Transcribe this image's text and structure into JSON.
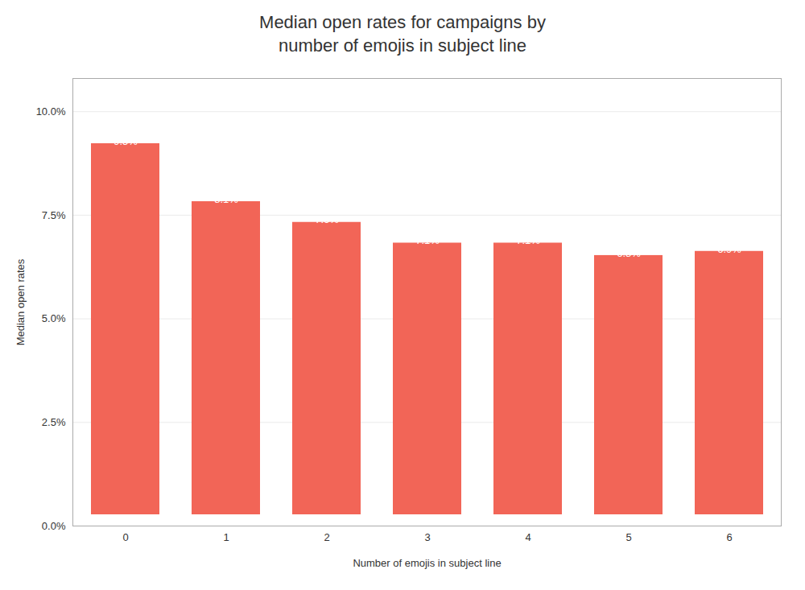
{
  "chart_data": {
    "type": "bar",
    "title": "Median open rates for campaigns by\nnumber of emojis in subject line",
    "xlabel": "Number of emojis in subject line",
    "ylabel": "Median open rates",
    "categories": [
      0,
      1,
      2,
      3,
      4,
      5,
      6
    ],
    "values": [
      0.095,
      0.081,
      0.076,
      0.071,
      0.071,
      0.068,
      0.069
    ],
    "value_labels": [
      "9.5%",
      "8.1%",
      "7.6%",
      "7.1%",
      "7.1%",
      "6.8%",
      "6.9%"
    ],
    "data_labels": true,
    "color": "#F26557",
    "ylim": [
      0,
      0.108
    ],
    "yticks": [
      {
        "value": 0.0,
        "label": "0.0%"
      },
      {
        "value": 0.025,
        "label": "2.5%"
      },
      {
        "value": 0.05,
        "label": "5.0%"
      },
      {
        "value": 0.075,
        "label": "7.5%"
      },
      {
        "value": 0.1,
        "label": "10.0%"
      }
    ],
    "grid": true
  }
}
